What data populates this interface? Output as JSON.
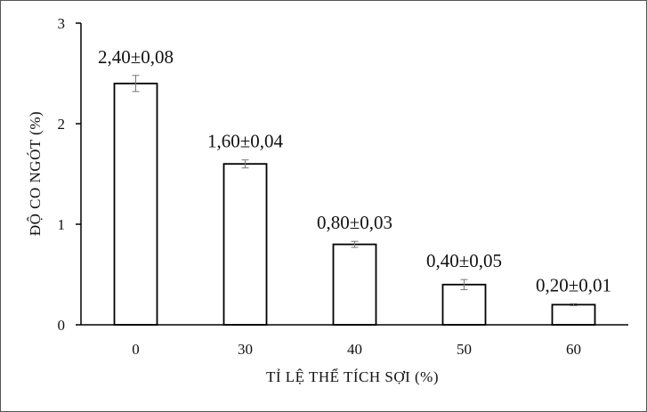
{
  "chart_data": {
    "type": "bar",
    "categories": [
      "0",
      "30",
      "40",
      "50",
      "60"
    ],
    "values": [
      2.4,
      1.6,
      0.8,
      0.4,
      0.2
    ],
    "errors": [
      0.08,
      0.04,
      0.03,
      0.05,
      0.01
    ],
    "data_labels": [
      "2,40±0,08",
      "1,60±0,04",
      "0,80±0,03",
      "0,40±0,05",
      "0,20±0,01"
    ],
    "xlabel": "TỈ LỆ THỂ TÍCH SỢI (%)",
    "ylabel": "ĐỘ CO NGÓT (%)",
    "ylim": [
      0,
      3
    ],
    "yticks": [
      0,
      1,
      2,
      3
    ],
    "ytick_labels": [
      "0",
      "1",
      "2",
      "3"
    ],
    "grid": false,
    "bar_fill": "#ffffff",
    "bar_stroke": "#000000"
  }
}
